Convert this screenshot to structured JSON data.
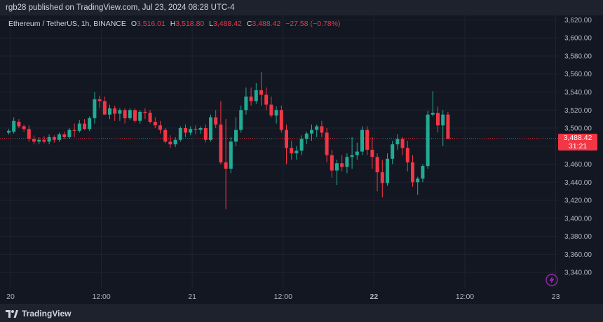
{
  "header": {
    "publisher_line": "rgb28 published on TradingView.com, Jul 23, 2024 08:28 UTC-4"
  },
  "legend": {
    "symbol": "Ethereum / TetherUS, 1h, BINANCE",
    "open_label": "O",
    "open": "3,516.01",
    "high_label": "H",
    "high": "3,518.80",
    "low_label": "L",
    "low": "3,488.42",
    "close_label": "C",
    "close": "3,488.42",
    "change": "−27.58 (−0.78%)"
  },
  "price_tag": {
    "price": "3,488.42",
    "countdown": "31:21"
  },
  "footer": {
    "brand": "TradingView"
  },
  "icons": {
    "brand_logo": "tradingview-logo-icon",
    "alert": "lightning-bolt-icon"
  },
  "colors": {
    "background": "#131722",
    "bar": "#1e222d",
    "grid": "#1f2330",
    "up": "#22ab94",
    "down": "#f23645",
    "text": "#d1d4dc",
    "axis_text": "#b2b5be",
    "bolt": "#9c27b0"
  },
  "chart_data": {
    "type": "candlestick",
    "y_axis": {
      "min": 3330,
      "max": 3625,
      "ticks": [
        "3,340.00",
        "3,360.00",
        "3,380.00",
        "3,400.00",
        "3,420.00",
        "3,440.00",
        "3,460.00",
        "3,480.00",
        "3,500.00",
        "3,520.00",
        "3,540.00",
        "3,560.00",
        "3,580.00",
        "3,600.00",
        "3,620.00"
      ],
      "tick_values": [
        3340,
        3360,
        3380,
        3400,
        3420,
        3440,
        3460,
        3480,
        3500,
        3520,
        3540,
        3560,
        3580,
        3600,
        3620
      ]
    },
    "x_axis": {
      "labels": [
        "20",
        "12:00",
        "21",
        "12:00",
        "22",
        "12:00",
        "23"
      ],
      "label_bar_index": [
        0,
        18,
        36,
        54,
        72,
        90,
        108
      ],
      "bold": [
        false,
        false,
        false,
        false,
        true,
        false,
        false
      ]
    },
    "last_price": 3488.42,
    "candles": [
      [
        3495,
        3499,
        3493,
        3497
      ],
      [
        3496,
        3512,
        3494,
        3508
      ],
      [
        3507,
        3510,
        3500,
        3502
      ],
      [
        3502,
        3504,
        3496,
        3499
      ],
      [
        3499,
        3503,
        3485,
        3488
      ],
      [
        3488,
        3492,
        3482,
        3485
      ],
      [
        3485,
        3490,
        3482,
        3487
      ],
      [
        3487,
        3491,
        3483,
        3485
      ],
      [
        3485,
        3493,
        3482,
        3490
      ],
      [
        3490,
        3492,
        3484,
        3487
      ],
      [
        3487,
        3495,
        3485,
        3493
      ],
      [
        3493,
        3496,
        3488,
        3490
      ],
      [
        3490,
        3500,
        3488,
        3498
      ],
      [
        3498,
        3505,
        3490,
        3497
      ],
      [
        3497,
        3509,
        3495,
        3505
      ],
      [
        3505,
        3510,
        3498,
        3499
      ],
      [
        3499,
        3513,
        3497,
        3511
      ],
      [
        3511,
        3540,
        3505,
        3532
      ],
      [
        3532,
        3536,
        3522,
        3530
      ],
      [
        3530,
        3535,
        3515,
        3515
      ],
      [
        3515,
        3526,
        3510,
        3522
      ],
      [
        3522,
        3525,
        3508,
        3516
      ],
      [
        3516,
        3522,
        3508,
        3520
      ],
      [
        3520,
        3522,
        3505,
        3511
      ],
      [
        3511,
        3522,
        3509,
        3520
      ],
      [
        3520,
        3522,
        3506,
        3508
      ],
      [
        3508,
        3520,
        3505,
        3518
      ],
      [
        3518,
        3522,
        3510,
        3517
      ],
      [
        3517,
        3520,
        3505,
        3507
      ],
      [
        3507,
        3512,
        3500,
        3503
      ],
      [
        3503,
        3508,
        3494,
        3498
      ],
      [
        3498,
        3500,
        3483,
        3485
      ],
      [
        3485,
        3492,
        3478,
        3482
      ],
      [
        3482,
        3490,
        3479,
        3487
      ],
      [
        3487,
        3502,
        3485,
        3500
      ],
      [
        3500,
        3504,
        3490,
        3495
      ],
      [
        3495,
        3502,
        3492,
        3499
      ],
      [
        3499,
        3503,
        3493,
        3498
      ],
      [
        3498,
        3502,
        3494,
        3500
      ],
      [
        3500,
        3504,
        3484,
        3487
      ],
      [
        3487,
        3515,
        3485,
        3512
      ],
      [
        3512,
        3520,
        3500,
        3504
      ],
      [
        3504,
        3530,
        3460,
        3462
      ],
      [
        3462,
        3510,
        3410,
        3455
      ],
      [
        3455,
        3490,
        3450,
        3485
      ],
      [
        3485,
        3512,
        3480,
        3498
      ],
      [
        3498,
        3525,
        3495,
        3520
      ],
      [
        3520,
        3545,
        3515,
        3535
      ],
      [
        3535,
        3545,
        3525,
        3530
      ],
      [
        3530,
        3550,
        3527,
        3542
      ],
      [
        3542,
        3562,
        3525,
        3537
      ],
      [
        3537,
        3545,
        3520,
        3526
      ],
      [
        3526,
        3535,
        3512,
        3514
      ],
      [
        3514,
        3524,
        3505,
        3520
      ],
      [
        3520,
        3525,
        3495,
        3498
      ],
      [
        3498,
        3504,
        3460,
        3478
      ],
      [
        3478,
        3486,
        3465,
        3472
      ],
      [
        3472,
        3480,
        3465,
        3475
      ],
      [
        3475,
        3492,
        3470,
        3488
      ],
      [
        3488,
        3496,
        3482,
        3494
      ],
      [
        3494,
        3504,
        3486,
        3498
      ],
      [
        3498,
        3504,
        3490,
        3502
      ],
      [
        3502,
        3508,
        3490,
        3495
      ],
      [
        3495,
        3500,
        3462,
        3470
      ],
      [
        3470,
        3476,
        3445,
        3453
      ],
      [
        3453,
        3465,
        3437,
        3461
      ],
      [
        3461,
        3470,
        3452,
        3457
      ],
      [
        3457,
        3472,
        3450,
        3468
      ],
      [
        3468,
        3490,
        3455,
        3470
      ],
      [
        3470,
        3484,
        3465,
        3474
      ],
      [
        3474,
        3502,
        3470,
        3498
      ],
      [
        3498,
        3502,
        3470,
        3476
      ],
      [
        3476,
        3490,
        3455,
        3468
      ],
      [
        3468,
        3472,
        3430,
        3451
      ],
      [
        3451,
        3465,
        3423,
        3439
      ],
      [
        3439,
        3472,
        3436,
        3466
      ],
      [
        3466,
        3486,
        3460,
        3482
      ],
      [
        3482,
        3493,
        3476,
        3488
      ],
      [
        3488,
        3490,
        3470,
        3478
      ],
      [
        3478,
        3486,
        3452,
        3462
      ],
      [
        3462,
        3470,
        3435,
        3440
      ],
      [
        3440,
        3446,
        3426,
        3444
      ],
      [
        3444,
        3460,
        3440,
        3458
      ],
      [
        3458,
        3519,
        3455,
        3515
      ],
      [
        3515,
        3541,
        3513,
        3517
      ],
      [
        3517,
        3524,
        3495,
        3503
      ],
      [
        3503,
        3520,
        3480,
        3515
      ],
      [
        3515,
        3518,
        3488,
        3488
      ]
    ]
  }
}
